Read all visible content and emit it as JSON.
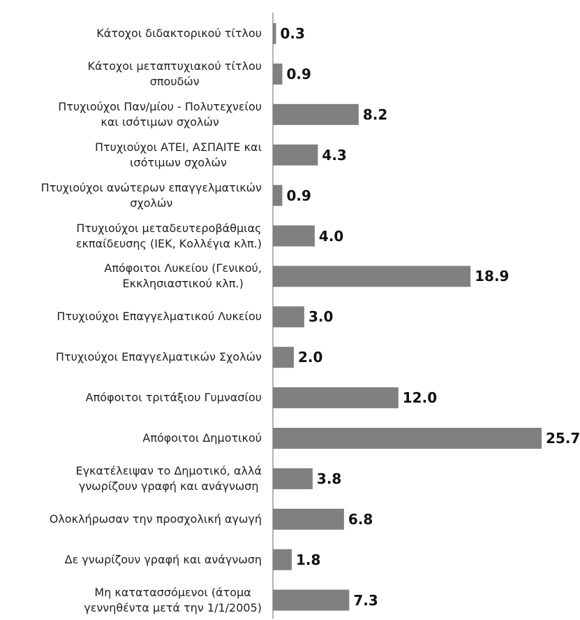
{
  "chart_data": {
    "type": "bar",
    "orientation": "horizontal",
    "color": "#808080",
    "categories": [
      "Κάτοχοι διδακτορικού τίτλου",
      "Κάτοχοι μεταπτυχιακού τίτλου\nσπουδών",
      "Πτυχιούχοι Παν/μίου - Πολυτεχνείου\nκαι ισότιμων σχολών",
      "Πτυχιούχοι ΑΤΕΙ, ΑΣΠΑΙΤΕ και\nισότιμων σχολών",
      "Πτυχιούχοι ανώτερων επαγγελματικών\nσχολών",
      "Πτυχιούχοι μεταδευτεροβάθμιας\nεκπαίδευσης (ΙΕΚ, Κολλέγια κλπ.)",
      "Απόφοιτοι Λυκείου (Γενικού,\nΕκκλησιαστικού κλπ.)",
      "Πτυχιούχοι Επαγγελματικού Λυκείου",
      "Πτυχιούχοι Επαγγελματικών Σχολών",
      "Απόφοιτοι τριτάξιου Γυμνασίου",
      "Απόφοιτοι Δημοτικού",
      "Εγκατέλειψαν το Δημοτικό, αλλά\nγνωρίζουν γραφή και ανάγνωση",
      "Ολοκλήρωσαν την προσχολική αγωγή",
      "Δε γνωρίζουν γραφή και ανάγνωση",
      "Μη κατατασσόμενοι (άτομα\nγεννηθέντα μετά την 1/1/2005)"
    ],
    "values": [
      0.3,
      0.9,
      8.2,
      4.3,
      0.9,
      4.0,
      18.9,
      3.0,
      2.0,
      12.0,
      25.7,
      3.8,
      6.8,
      1.8,
      7.3
    ],
    "value_labels": [
      "0.3",
      "0.9",
      "8.2",
      "4.3",
      "0.9",
      "4.0",
      "18.9",
      "3.0",
      "2.0",
      "12.0",
      "25.7",
      "3.8",
      "6.8",
      "1.8",
      "7.3"
    ]
  }
}
